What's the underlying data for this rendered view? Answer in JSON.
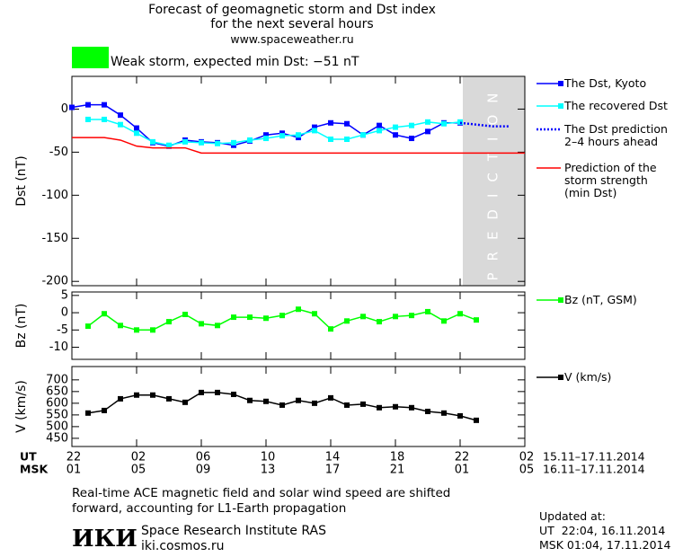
{
  "header": {
    "title": "Forecast of geomagnetic storm and Dst index\nfor the next several hours",
    "url": "www.spaceweather.ru",
    "storm": "Weak storm, expected min Dst: −51 nT",
    "storm_color": "#00ff00"
  },
  "time_axis": {
    "xlim": [
      0,
      28
    ],
    "ticks": [
      0,
      4,
      8,
      12,
      16,
      20,
      24,
      28
    ],
    "rows": [
      {
        "name": "UT",
        "labels": [
          "22",
          "02",
          "06",
          "10",
          "14",
          "18",
          "22",
          "02"
        ],
        "range": "15.11–17.11.2014"
      },
      {
        "name": "MSK",
        "labels": [
          "01",
          "05",
          "09",
          "13",
          "17",
          "21",
          "01",
          "05"
        ],
        "range": "16.11–17.11.2014"
      }
    ]
  },
  "chart_data": [
    {
      "type": "line",
      "ylabel": "Dst (nT)",
      "ylim": [
        -205,
        38
      ],
      "yticks": [
        0,
        -50,
        -100,
        -150,
        -200
      ],
      "prediction_band": {
        "label": "PREDICTION",
        "x": [
          24,
          28
        ],
        "color": "#d9d9d9"
      },
      "series": [
        {
          "name": "The Dst, Kyoto",
          "color": "#0000ff",
          "marker": "square",
          "x": [
            0,
            1,
            2,
            3,
            4,
            5,
            6,
            7,
            8,
            9,
            10,
            11,
            12,
            13,
            14,
            15,
            16,
            17,
            18,
            19,
            20,
            21,
            22,
            23,
            24
          ],
          "values": [
            2,
            5,
            5,
            -7,
            -22,
            -39,
            -43,
            -36,
            -38,
            -39,
            -42,
            -37,
            -30,
            -28,
            -33,
            -21,
            -16,
            -17,
            -30,
            -19,
            -30,
            -34,
            -26,
            -16,
            -16
          ]
        },
        {
          "name": "The recovered Dst",
          "color": "#00ffff",
          "marker": "square",
          "x": [
            1,
            2,
            3,
            4,
            5,
            6,
            7,
            8,
            9,
            10,
            11,
            12,
            13,
            14,
            15,
            16,
            17,
            18,
            19,
            20,
            21,
            22,
            23,
            24
          ],
          "values": [
            -12,
            -12,
            -18,
            -28,
            -38,
            -42,
            -38,
            -39,
            -40,
            -39,
            -36,
            -34,
            -31,
            -30,
            -25,
            -35,
            -35,
            -30,
            -25,
            -21,
            -19,
            -15,
            -17,
            -15
          ]
        },
        {
          "name": "The Dst prediction\n2–4 hours ahead",
          "color": "#0000ff",
          "dash": "dotted",
          "x": [
            24,
            25,
            26,
            27
          ],
          "values": [
            -16,
            -18,
            -20,
            -20
          ]
        },
        {
          "name": "Prediction of the\nstorm strength\n(min Dst)",
          "color": "#ff0000",
          "x": [
            0,
            2,
            3,
            4,
            5,
            7,
            8,
            28
          ],
          "values": [
            -33,
            -33,
            -36,
            -43,
            -45,
            -45,
            -51,
            -51
          ]
        }
      ]
    },
    {
      "type": "line",
      "ylabel": "Bz (nT)",
      "ylim": [
        -13.5,
        6
      ],
      "yticks": [
        5,
        0,
        -5,
        -10
      ],
      "series": [
        {
          "name": "Bz (nT, GSM)",
          "color": "#00ff00",
          "marker": "square",
          "x": [
            1,
            2,
            3,
            4,
            5,
            6,
            7,
            8,
            9,
            10,
            11,
            12,
            13,
            14,
            15,
            16,
            17,
            18,
            19,
            20,
            21,
            22,
            23,
            24,
            25
          ],
          "values": [
            -3.9,
            -0.3,
            -3.7,
            -5,
            -5,
            -2.6,
            -0.5,
            -3.2,
            -3.7,
            -1.3,
            -1.3,
            -1.6,
            -0.8,
            1,
            -0.3,
            -4.7,
            -2.4,
            -1.1,
            -2.6,
            -1.1,
            -0.8,
            0.3,
            -2.4,
            -0.3,
            -2.1
          ]
        }
      ]
    },
    {
      "type": "line",
      "ylabel": "V (km/s)",
      "ylim": [
        415,
        757
      ],
      "yticks": [
        700,
        650,
        600,
        550,
        500,
        450
      ],
      "series": [
        {
          "name": "V (km/s)",
          "color": "#000000",
          "marker": "square",
          "x": [
            1,
            2,
            3,
            4,
            5,
            6,
            7,
            8,
            9,
            10,
            11,
            12,
            13,
            14,
            15,
            16,
            17,
            18,
            19,
            20,
            21,
            22,
            23,
            24,
            25
          ],
          "values": [
            558,
            569,
            619,
            635,
            635,
            619,
            604,
            646,
            646,
            638,
            612,
            608,
            592,
            612,
            600,
            623,
            592,
            596,
            581,
            585,
            581,
            565,
            558,
            546,
            527
          ]
        }
      ]
    }
  ],
  "footer": {
    "note": "Real-time ACE magnetic field and solar wind speed are shifted\nforward, accounting for L1-Earth propagation",
    "logo": "ИКИ",
    "institute": "Space Research Institute RAS",
    "site": "iki.cosmos.ru",
    "updated": "Updated at:",
    "ut": "UT  22:04, 16.11.2014",
    "msk": "MSK 01:04, 17.11.2014"
  }
}
